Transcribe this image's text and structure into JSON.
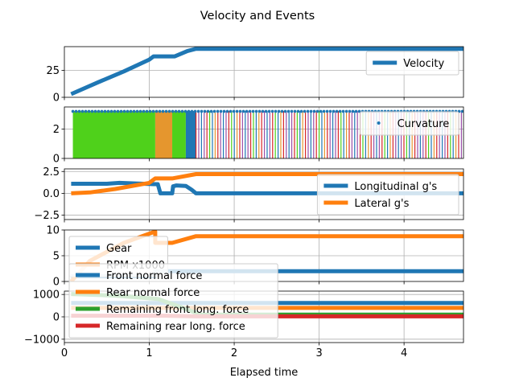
{
  "chart_data": {
    "type": "line",
    "title": "Velocity and Events",
    "xlabel": "Elapsed time",
    "xlim": [
      0,
      4.7
    ],
    "xticks": [
      0,
      1,
      2,
      3,
      4
    ],
    "xtick_labels": [
      "0",
      "1",
      "2",
      "3",
      "4"
    ],
    "grid": true,
    "colors": {
      "blue": "#1f77b4",
      "orange": "#ff7f0e",
      "green": "#2ca02c",
      "red": "#d62728",
      "lime": "#4fd11b",
      "gold": "#e5962e",
      "purple": "#9a4fa8"
    },
    "panels": [
      {
        "legend_loc": "upper right",
        "ylim": [
          0,
          47
        ],
        "yticks": [
          0,
          25
        ],
        "ytick_labels": [
          "0",
          "25"
        ],
        "series": [
          {
            "name": "Velocity",
            "kind": "line",
            "color": "#1f77b4",
            "x": [
              0.08,
              0.4,
              0.7,
              1.0,
              1.05,
              1.3,
              1.45,
              1.55,
              4.7
            ],
            "y": [
              3,
              14,
              24,
              35,
              38,
              38,
              43,
              45,
              45
            ]
          }
        ]
      },
      {
        "legend_loc": "upper right",
        "ylim": [
          0,
          3.5
        ],
        "yticks": [
          0,
          2
        ],
        "ytick_labels": [
          "0",
          "2"
        ],
        "curvature_y": 3.2,
        "bands": [
          {
            "x0": 0.1,
            "x1": 1.07,
            "color": "#4fd11b"
          },
          {
            "x0": 1.07,
            "x1": 1.27,
            "color": "#e5962e"
          },
          {
            "x0": 1.27,
            "x1": 1.43,
            "color": "#4fd11b"
          },
          {
            "x0": 1.43,
            "x1": 1.55,
            "color": "#1f77b4"
          }
        ],
        "stripes": {
          "x0": 1.55,
          "x1": 4.7
        },
        "series": [
          {
            "name": "Curvature",
            "kind": "dot",
            "color": "#1f77b4"
          }
        ]
      },
      {
        "legend_loc": "lower right",
        "ylim": [
          -3,
          2.8
        ],
        "yticks": [
          -2.5,
          0,
          2.5
        ],
        "ytick_labels": [
          "−2.5",
          "0.0",
          "2.5"
        ],
        "series": [
          {
            "name": "Longitudinal g's",
            "kind": "line",
            "color": "#1f77b4",
            "x": [
              0.08,
              0.5,
              0.65,
              1.05,
              1.1,
              1.13,
              1.17,
              1.27,
              1.28,
              1.32,
              1.43,
              1.5,
              1.55,
              4.7
            ],
            "y": [
              1.1,
              1.1,
              1.2,
              1.05,
              1.05,
              0,
              0,
              0,
              0.8,
              0.9,
              0.85,
              0.4,
              0,
              0
            ]
          },
          {
            "name": "Lateral g's",
            "kind": "line",
            "color": "#ff7f0e",
            "x": [
              0.08,
              0.3,
              0.6,
              1.0,
              1.07,
              1.27,
              1.55,
              4.7
            ],
            "y": [
              0,
              0.1,
              0.5,
              1.2,
              1.7,
              1.7,
              2.2,
              2.2
            ]
          }
        ]
      },
      {
        "legend_loc": "lower left",
        "ylim": [
          0,
          10
        ],
        "yticks": [
          0,
          5,
          10
        ],
        "ytick_labels": [
          "0",
          "5",
          "10"
        ],
        "series": [
          {
            "name": "Gear",
            "kind": "line",
            "color": "#1f77b4",
            "x": [
              0.08,
              1.07,
              1.07,
              4.7
            ],
            "y": [
              1,
              1,
              2,
              2
            ]
          },
          {
            "name": "RPM x1000",
            "kind": "line",
            "color": "#ff7f0e",
            "x": [
              0.08,
              0.3,
              0.7,
              1.07,
              1.07,
              1.27,
              1.55,
              4.7
            ],
            "y": [
              0,
              4,
              7.5,
              9.7,
              7.5,
              7.5,
              8.8,
              8.8
            ]
          }
        ]
      },
      {
        "legend_loc": "lower left",
        "ylim": [
          -1150,
          1150
        ],
        "yticks": [
          -1000,
          0,
          1000
        ],
        "ytick_labels": [
          "−1000",
          "0",
          "1000"
        ],
        "series": [
          {
            "name": "Front normal force",
            "kind": "line",
            "color": "#1f77b4",
            "x": [
              0.08,
              1.5,
              4.7
            ],
            "y": [
              620,
              620,
              620
            ]
          },
          {
            "name": "Rear normal force",
            "kind": "line",
            "color": "#ff7f0e",
            "x": [
              0.08,
              1.5,
              4.7
            ],
            "y": [
              400,
              400,
              400
            ]
          },
          {
            "name": "Remaining front long. force",
            "kind": "line",
            "color": "#2ca02c",
            "x": [
              0.08,
              0.6,
              1.1,
              1.4,
              1.6,
              4.7
            ],
            "y": [
              1020,
              950,
              800,
              400,
              100,
              100
            ]
          },
          {
            "name": "Remaining rear long. force",
            "kind": "line",
            "color": "#d62728",
            "x": [
              0.08,
              1.2,
              1.55,
              4.7
            ],
            "y": [
              50,
              50,
              20,
              20
            ]
          }
        ]
      }
    ]
  }
}
